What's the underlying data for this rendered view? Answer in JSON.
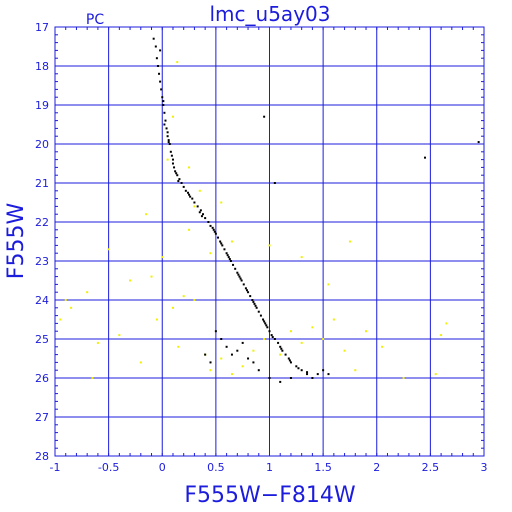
{
  "chart_data": {
    "type": "scatter",
    "title": "lmc_u5ay03",
    "corner_label": "PC",
    "xlabel": "F555W−F814W",
    "ylabel": "F555W",
    "xlim": [
      -1,
      3
    ],
    "ylim": [
      28,
      17
    ],
    "y_inverted": true,
    "grid": true,
    "x_ticks": [
      -1,
      -0.5,
      0,
      0.5,
      1,
      1.5,
      2,
      2.5,
      3
    ],
    "x_tick_labels": [
      "-1",
      "-0.5",
      "0",
      "0.5",
      "1",
      "1.5",
      "2",
      "2.5",
      "3"
    ],
    "y_ticks": [
      17,
      18,
      19,
      20,
      21,
      22,
      23,
      24,
      25,
      26,
      27,
      28
    ],
    "y_tick_labels": [
      "17",
      "18",
      "19",
      "20",
      "21",
      "22",
      "23",
      "24",
      "25",
      "26",
      "27",
      "28"
    ],
    "colors": {
      "axis": "#1c1cdc",
      "series_main": "#000000",
      "series_secondary": "#f0f000"
    },
    "series": [
      {
        "color": "#000000",
        "points": [
          [
            -0.08,
            17.3
          ],
          [
            -0.06,
            17.5
          ],
          [
            -0.05,
            17.8
          ],
          [
            -0.04,
            18.0
          ],
          [
            -0.03,
            18.2
          ],
          [
            -0.02,
            18.4
          ],
          [
            -0.01,
            18.6
          ],
          [
            0.0,
            18.8
          ],
          [
            0.01,
            19.0
          ],
          [
            0.02,
            19.2
          ],
          [
            0.03,
            19.4
          ],
          [
            0.02,
            19.5
          ],
          [
            0.04,
            19.6
          ],
          [
            0.05,
            19.8
          ],
          [
            0.06,
            19.9
          ],
          [
            0.07,
            20.0
          ],
          [
            0.08,
            20.2
          ],
          [
            0.09,
            20.3
          ],
          [
            0.1,
            20.4
          ],
          [
            0.11,
            20.6
          ],
          [
            0.12,
            20.7
          ],
          [
            0.14,
            20.8
          ],
          [
            0.16,
            20.9
          ],
          [
            0.18,
            21.0
          ],
          [
            0.2,
            21.1
          ],
          [
            0.22,
            21.2
          ],
          [
            0.25,
            21.3
          ],
          [
            0.28,
            21.4
          ],
          [
            0.3,
            21.5
          ],
          [
            0.33,
            21.6
          ],
          [
            0.36,
            21.7
          ],
          [
            0.38,
            21.8
          ],
          [
            0.4,
            21.9
          ],
          [
            0.43,
            22.0
          ],
          [
            0.45,
            22.1
          ],
          [
            0.48,
            22.2
          ],
          [
            0.5,
            22.3
          ],
          [
            0.52,
            22.4
          ],
          [
            0.54,
            22.5
          ],
          [
            0.56,
            22.6
          ],
          [
            0.58,
            22.7
          ],
          [
            0.6,
            22.8
          ],
          [
            0.62,
            22.9
          ],
          [
            0.64,
            23.0
          ],
          [
            0.66,
            23.1
          ],
          [
            0.68,
            23.2
          ],
          [
            0.7,
            23.3
          ],
          [
            0.72,
            23.4
          ],
          [
            0.74,
            23.5
          ],
          [
            0.76,
            23.6
          ],
          [
            0.78,
            23.7
          ],
          [
            0.8,
            23.8
          ],
          [
            0.82,
            23.9
          ],
          [
            0.84,
            24.0
          ],
          [
            0.86,
            24.1
          ],
          [
            0.88,
            24.2
          ],
          [
            0.9,
            24.3
          ],
          [
            0.92,
            24.4
          ],
          [
            0.94,
            24.5
          ],
          [
            0.96,
            24.6
          ],
          [
            0.98,
            24.7
          ],
          [
            1.0,
            24.8
          ],
          [
            1.02,
            24.9
          ],
          [
            1.05,
            25.0
          ],
          [
            1.08,
            25.1
          ],
          [
            1.1,
            25.2
          ],
          [
            1.12,
            25.3
          ],
          [
            1.15,
            25.4
          ],
          [
            1.18,
            25.5
          ],
          [
            1.2,
            25.6
          ],
          [
            1.25,
            25.7
          ],
          [
            1.3,
            25.8
          ],
          [
            1.35,
            25.9
          ],
          [
            1.4,
            26.0
          ],
          [
            1.45,
            25.9
          ],
          [
            1.5,
            25.8
          ],
          [
            1.55,
            25.9
          ],
          [
            -0.02,
            17.6
          ],
          [
            0.01,
            18.9
          ],
          [
            0.05,
            19.7
          ],
          [
            0.1,
            20.5
          ],
          [
            0.15,
            20.95
          ],
          [
            0.24,
            21.25
          ],
          [
            0.35,
            21.75
          ],
          [
            0.47,
            22.15
          ],
          [
            0.55,
            22.55
          ],
          [
            0.63,
            22.95
          ],
          [
            0.71,
            23.35
          ],
          [
            0.79,
            23.75
          ],
          [
            0.87,
            24.15
          ],
          [
            0.95,
            24.55
          ],
          [
            1.03,
            24.95
          ],
          [
            1.11,
            25.25
          ],
          [
            1.19,
            25.55
          ],
          [
            1.27,
            25.75
          ],
          [
            1.35,
            25.85
          ],
          [
            0.97,
            24.65
          ],
          [
            0.85,
            24.05
          ],
          [
            0.73,
            23.45
          ],
          [
            0.61,
            22.85
          ],
          [
            0.49,
            22.25
          ],
          [
            0.37,
            21.85
          ],
          [
            0.26,
            21.35
          ],
          [
            0.13,
            20.75
          ],
          [
            0.06,
            19.95
          ],
          [
            0.5,
            24.8
          ],
          [
            0.55,
            25.0
          ],
          [
            0.6,
            25.2
          ],
          [
            0.65,
            25.4
          ],
          [
            0.7,
            25.3
          ],
          [
            0.75,
            25.1
          ],
          [
            0.8,
            25.5
          ],
          [
            0.85,
            25.6
          ],
          [
            0.9,
            25.8
          ],
          [
            1.0,
            26.0
          ],
          [
            1.1,
            26.1
          ],
          [
            1.2,
            26.0
          ],
          [
            0.45,
            25.6
          ],
          [
            0.4,
            25.4
          ],
          [
            0.95,
            19.3
          ],
          [
            1.05,
            21.0
          ],
          [
            2.45,
            20.35
          ],
          [
            2.95,
            19.95
          ]
        ]
      },
      {
        "color": "#f0f000",
        "points": [
          [
            0.14,
            17.9
          ],
          [
            0.1,
            19.3
          ],
          [
            0.3,
            21.6
          ],
          [
            0.55,
            21.5
          ],
          [
            0.65,
            22.5
          ],
          [
            1.0,
            22.6
          ],
          [
            1.3,
            22.9
          ],
          [
            -0.9,
            24.0
          ],
          [
            -0.85,
            24.2
          ],
          [
            -0.95,
            24.5
          ],
          [
            -0.7,
            23.8
          ],
          [
            -0.6,
            25.1
          ],
          [
            -0.5,
            22.7
          ],
          [
            -0.4,
            24.9
          ],
          [
            -0.3,
            23.5
          ],
          [
            -0.1,
            23.4
          ],
          [
            -0.05,
            24.5
          ],
          [
            0.1,
            24.2
          ],
          [
            0.15,
            25.2
          ],
          [
            0.2,
            23.9
          ],
          [
            0.3,
            24.0
          ],
          [
            0.4,
            25.4
          ],
          [
            0.45,
            25.8
          ],
          [
            0.55,
            25.5
          ],
          [
            0.65,
            25.9
          ],
          [
            0.75,
            25.7
          ],
          [
            0.85,
            25.3
          ],
          [
            0.95,
            25.0
          ],
          [
            1.1,
            25.4
          ],
          [
            1.2,
            24.8
          ],
          [
            1.3,
            25.1
          ],
          [
            1.4,
            24.7
          ],
          [
            1.5,
            25.0
          ],
          [
            1.6,
            24.5
          ],
          [
            1.7,
            25.3
          ],
          [
            1.8,
            25.8
          ],
          [
            1.9,
            24.8
          ],
          [
            2.05,
            25.2
          ],
          [
            2.25,
            26.0
          ],
          [
            2.55,
            25.9
          ],
          [
            2.6,
            24.9
          ],
          [
            2.65,
            24.6
          ],
          [
            -0.65,
            26.0
          ],
          [
            -0.2,
            25.6
          ],
          [
            0.0,
            22.9
          ],
          [
            -0.15,
            21.8
          ],
          [
            0.25,
            22.2
          ],
          [
            0.45,
            22.8
          ],
          [
            1.55,
            23.6
          ],
          [
            1.75,
            22.5
          ],
          [
            0.35,
            21.2
          ],
          [
            0.25,
            20.6
          ],
          [
            0.05,
            20.4
          ]
        ]
      }
    ]
  }
}
